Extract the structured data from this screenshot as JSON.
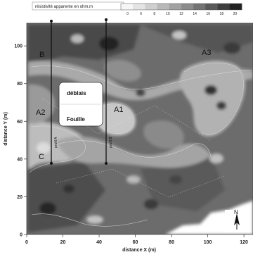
{
  "map": {
    "legend": {
      "title": "résistivité apparente en ohm.m",
      "ticks": [
        "0",
        "6",
        "8",
        "10",
        "12",
        "14",
        "16",
        "18",
        "20"
      ],
      "colors": [
        "#f6f6f6",
        "#e4e4e4",
        "#cfcfcf",
        "#b8b8b8",
        "#a2a2a2",
        "#8c8c8c",
        "#747474",
        "#5a5a5a",
        "#3e3e3e",
        "#222222"
      ]
    },
    "x_axis": {
      "title": "distance X (m)",
      "ticks": [
        "0",
        "20",
        "40",
        "60",
        "80",
        "100",
        "120"
      ]
    },
    "y_axis": {
      "title": "distance Y (m)",
      "ticks": [
        "0",
        "20",
        "40",
        "60",
        "80",
        "100"
      ]
    },
    "zones": [
      "A1",
      "A2",
      "A3",
      "B",
      "C"
    ],
    "legend_box": {
      "line1": "déblais",
      "line2": "Fouille"
    },
    "profiles": [
      "profil A",
      "profil B"
    ],
    "north_label": "N"
  }
}
